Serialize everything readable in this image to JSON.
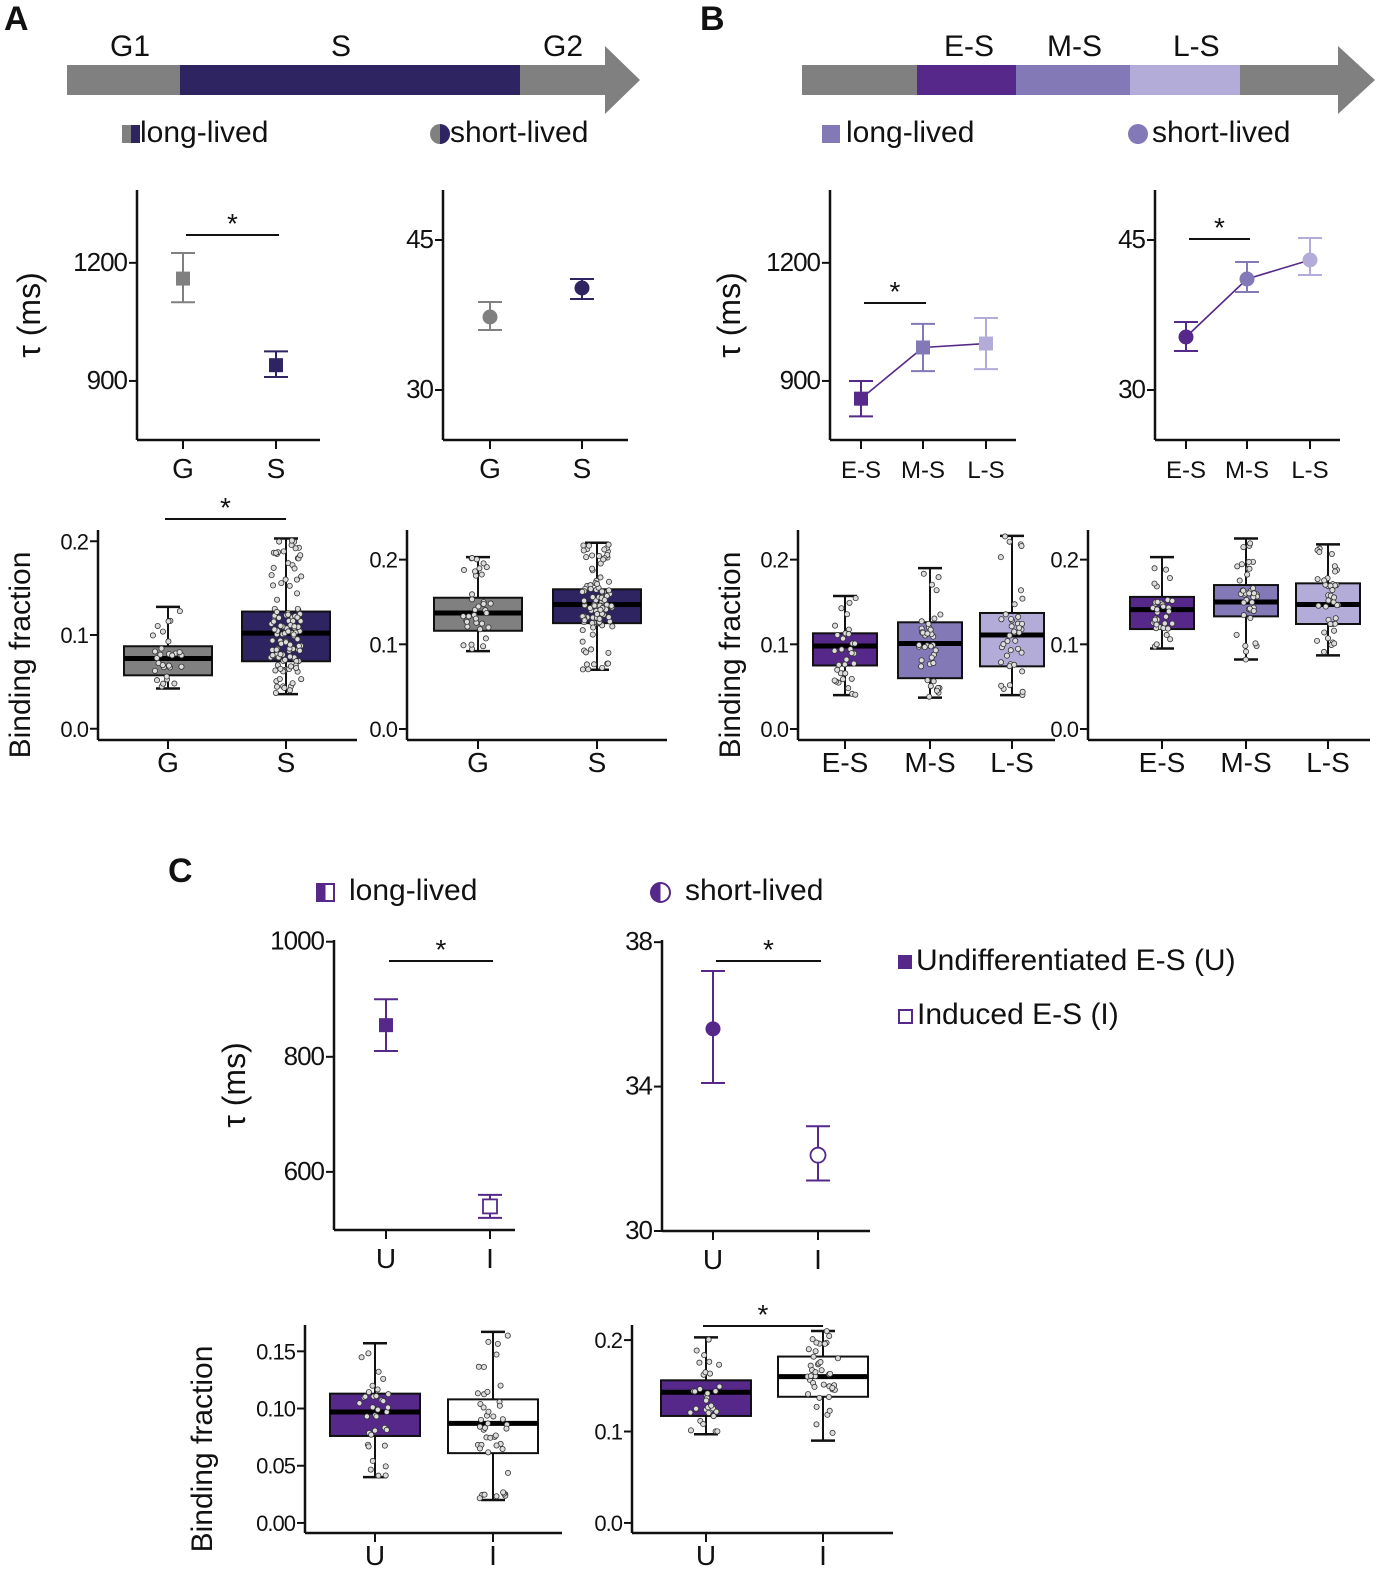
{
  "panel_labels": {
    "a": "A",
    "b": "B",
    "c": "C"
  },
  "colors": {
    "gray": "#808080",
    "navy": "#2e2462",
    "es": "#55288a",
    "ms": "#8379b6",
    "ls": "#b3acd9",
    "white": "#ffffff"
  },
  "header_a": {
    "phases": [
      "G1",
      "S",
      "G2"
    ],
    "legend_long": "long-lived",
    "legend_short": "short-lived"
  },
  "header_b": {
    "phases": [
      "E-S",
      "M-S",
      "L-S"
    ],
    "legend_long": "long-lived",
    "legend_short": "short-lived"
  },
  "header_c": {
    "legend_long": "long-lived",
    "legend_short": "short-lived",
    "legend_u": "Undifferentiated E-S (U)",
    "legend_i": "Induced E-S (I)"
  },
  "chart_data": [
    {
      "id": "A-tau-long",
      "type": "scatter",
      "ylabel": "τ (ms)",
      "categories": [
        "G",
        "S"
      ],
      "values": [
        1160,
        940
      ],
      "err_low": [
        1100,
        910
      ],
      "err_high": [
        1225,
        975
      ],
      "ylim": [
        750,
        1385
      ],
      "yticks": [
        "900",
        "1200"
      ],
      "ytick_values": [
        900,
        1200
      ],
      "marker": "square",
      "colors": [
        "#808080",
        "#2e2462"
      ],
      "fill": [
        true,
        true
      ],
      "connect": false,
      "significance": [
        [
          0,
          1
        ]
      ]
    },
    {
      "id": "A-tau-short",
      "type": "scatter",
      "ylabel": "",
      "categories": [
        "G",
        "S"
      ],
      "values": [
        37.3,
        40.2
      ],
      "err_low": [
        36.0,
        39.1
      ],
      "err_high": [
        38.8,
        41.1
      ],
      "ylim": [
        25,
        50
      ],
      "yticks": [
        "30",
        "45"
      ],
      "ytick_values": [
        30,
        45
      ],
      "marker": "circle",
      "colors": [
        "#808080",
        "#2e2462"
      ],
      "fill": [
        true,
        true
      ],
      "connect": false,
      "significance": []
    },
    {
      "id": "A-bf-long",
      "type": "box",
      "ylabel": "Binding fraction",
      "categories": [
        "G",
        "S"
      ],
      "boxes": [
        {
          "min": 0.043,
          "q1": 0.057,
          "median": 0.075,
          "q3": 0.088,
          "max": 0.13
        },
        {
          "min": 0.037,
          "q1": 0.072,
          "median": 0.102,
          "q3": 0.125,
          "max": 0.203
        }
      ],
      "ylim": [
        -0.012,
        0.212
      ],
      "yticks": [
        "0.0",
        "0.1",
        "0.2"
      ],
      "ytick_values": [
        0,
        0.1,
        0.2
      ],
      "colors": [
        "#808080",
        "#2e2462"
      ],
      "significance": [
        [
          0,
          1
        ]
      ]
    },
    {
      "id": "A-bf-short",
      "type": "box",
      "ylabel": "",
      "categories": [
        "G",
        "S"
      ],
      "boxes": [
        {
          "min": 0.092,
          "q1": 0.116,
          "median": 0.137,
          "q3": 0.155,
          "max": 0.203
        },
        {
          "min": 0.07,
          "q1": 0.125,
          "median": 0.147,
          "q3": 0.165,
          "max": 0.22
        }
      ],
      "ylim": [
        -0.013,
        0.235
      ],
      "yticks": [
        "0.0",
        "0.1",
        "0.2"
      ],
      "ytick_values": [
        0,
        0.1,
        0.2
      ],
      "colors": [
        "#808080",
        "#2e2462"
      ],
      "significance": []
    },
    {
      "id": "B-tau-long",
      "type": "line",
      "ylabel": "τ (ms)",
      "categories": [
        "E-S",
        "M-S",
        "L-S"
      ],
      "values": [
        855,
        985,
        995
      ],
      "err_low": [
        810,
        925,
        930
      ],
      "err_high": [
        900,
        1045,
        1060
      ],
      "ylim": [
        750,
        1385
      ],
      "yticks": [
        "900",
        "1200"
      ],
      "ytick_values": [
        900,
        1200
      ],
      "marker": "square",
      "colors": [
        "#55288a",
        "#8379b6",
        "#b3acd9"
      ],
      "fill": [
        true,
        true,
        true
      ],
      "connect": true,
      "significance": [
        [
          0,
          1
        ]
      ]
    },
    {
      "id": "B-tau-short",
      "type": "line",
      "ylabel": "",
      "categories": [
        "E-S",
        "M-S",
        "L-S"
      ],
      "values": [
        35.3,
        41.1,
        43.0
      ],
      "err_low": [
        33.9,
        39.8,
        41.5
      ],
      "err_high": [
        36.8,
        42.8,
        45.2
      ],
      "ylim": [
        25,
        50
      ],
      "yticks": [
        "30",
        "45"
      ],
      "ytick_values": [
        30,
        45
      ],
      "marker": "circle",
      "colors": [
        "#55288a",
        "#8379b6",
        "#b3acd9"
      ],
      "fill": [
        true,
        true,
        true
      ],
      "connect": true,
      "significance": [
        [
          0,
          1
        ]
      ]
    },
    {
      "id": "B-bf-long",
      "type": "box",
      "ylabel": "Binding fraction",
      "categories": [
        "E-S",
        "M-S",
        "L-S"
      ],
      "boxes": [
        {
          "min": 0.04,
          "q1": 0.075,
          "median": 0.098,
          "q3": 0.113,
          "max": 0.157
        },
        {
          "min": 0.037,
          "q1": 0.06,
          "median": 0.101,
          "q3": 0.126,
          "max": 0.19
        },
        {
          "min": 0.04,
          "q1": 0.074,
          "median": 0.111,
          "q3": 0.137,
          "max": 0.228
        }
      ],
      "ylim": [
        -0.013,
        0.235
      ],
      "yticks": [
        "0.0",
        "0.1",
        "0.2"
      ],
      "ytick_values": [
        0,
        0.1,
        0.2
      ],
      "colors": [
        "#55288a",
        "#8379b6",
        "#b3acd9"
      ],
      "significance": []
    },
    {
      "id": "B-bf-short",
      "type": "box",
      "ylabel": "",
      "categories": [
        "E-S",
        "M-S",
        "L-S"
      ],
      "boxes": [
        {
          "min": 0.095,
          "q1": 0.118,
          "median": 0.141,
          "q3": 0.156,
          "max": 0.203
        },
        {
          "min": 0.082,
          "q1": 0.133,
          "median": 0.15,
          "q3": 0.17,
          "max": 0.225
        },
        {
          "min": 0.087,
          "q1": 0.124,
          "median": 0.147,
          "q3": 0.172,
          "max": 0.218
        }
      ],
      "ylim": [
        -0.013,
        0.235
      ],
      "yticks": [
        "0.0",
        "0.1",
        "0.2"
      ],
      "ytick_values": [
        0,
        0.1,
        0.2
      ],
      "colors": [
        "#55288a",
        "#8379b6",
        "#b3acd9"
      ],
      "significance": []
    },
    {
      "id": "C-tau-long",
      "type": "scatter",
      "ylabel": "τ (ms)",
      "categories": [
        "U",
        "I"
      ],
      "values": [
        855,
        540
      ],
      "err_low": [
        810,
        520
      ],
      "err_high": [
        900,
        560
      ],
      "ylim": [
        499,
        1003
      ],
      "yticks": [
        "600",
        "800",
        "1000"
      ],
      "ytick_values": [
        600,
        800,
        1000
      ],
      "marker": "square",
      "colors": [
        "#55288a",
        "#55288a"
      ],
      "fill": [
        true,
        false
      ],
      "connect": false,
      "significance": [
        [
          0,
          1
        ]
      ]
    },
    {
      "id": "C-tau-short",
      "type": "scatter",
      "ylabel": "",
      "categories": [
        "U",
        "I"
      ],
      "values": [
        35.6,
        32.1
      ],
      "err_low": [
        34.1,
        31.4
      ],
      "err_high": [
        37.2,
        32.9
      ],
      "ylim": [
        30,
        38.06
      ],
      "yticks": [
        "30",
        "34",
        "38"
      ],
      "ytick_values": [
        30,
        34,
        38
      ],
      "marker": "circle",
      "colors": [
        "#55288a",
        "#55288a"
      ],
      "fill": [
        true,
        false
      ],
      "connect": false,
      "significance": [
        [
          0,
          1
        ]
      ]
    },
    {
      "id": "C-bf-long",
      "type": "box",
      "ylabel": "Binding fraction",
      "categories": [
        "U",
        "I"
      ],
      "boxes": [
        {
          "min": 0.04,
          "q1": 0.076,
          "median": 0.097,
          "q3": 0.113,
          "max": 0.157
        },
        {
          "min": 0.02,
          "q1": 0.061,
          "median": 0.087,
          "q3": 0.108,
          "max": 0.167
        }
      ],
      "ylim": [
        -0.0088,
        0.173
      ],
      "yticks": [
        "0.00",
        "0.05",
        "0.10",
        "0.15"
      ],
      "ytick_values": [
        0,
        0.05,
        0.1,
        0.15
      ],
      "colors": [
        "#55288a",
        "#ffffff"
      ],
      "significance": []
    },
    {
      "id": "C-bf-short",
      "type": "box",
      "ylabel": "",
      "categories": [
        "U",
        "I"
      ],
      "boxes": [
        {
          "min": 0.097,
          "q1": 0.117,
          "median": 0.143,
          "q3": 0.156,
          "max": 0.203
        },
        {
          "min": 0.09,
          "q1": 0.138,
          "median": 0.16,
          "q3": 0.182,
          "max": 0.21
        }
      ],
      "ylim": [
        -0.011,
        0.2165
      ],
      "yticks": [
        "0.0",
        "0.1",
        "0.2"
      ],
      "ytick_values": [
        0,
        0.1,
        0.2
      ],
      "colors": [
        "#55288a",
        "#ffffff"
      ],
      "significance": [
        [
          0,
          1
        ]
      ]
    }
  ]
}
